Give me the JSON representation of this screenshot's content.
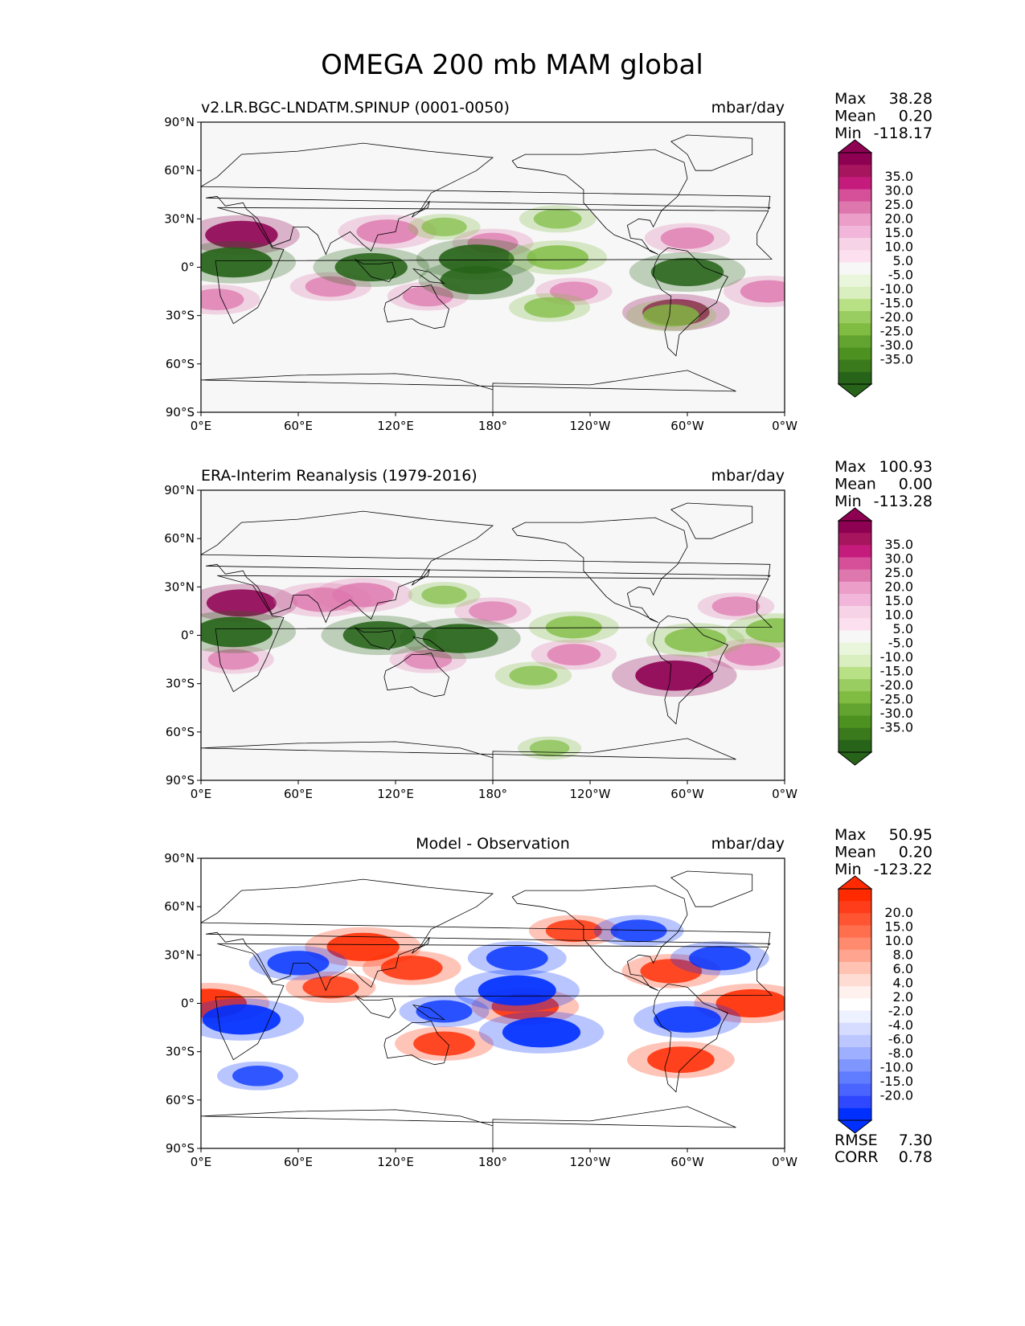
{
  "figure_title": "OMEGA 200 mb MAM global",
  "lon_ticks": [
    "0°E",
    "60°E",
    "120°E",
    "180°",
    "120°W",
    "60°W",
    "0°W"
  ],
  "lat_ticks": [
    "90°N",
    "60°N",
    "30°N",
    "0°",
    "30°S",
    "60°S",
    "90°S"
  ],
  "stat_labels": {
    "max": "Max",
    "mean": "Mean",
    "min": "Min",
    "rmse": "RMSE",
    "corr": "CORR"
  },
  "colors": {
    "pos_strong": "#8e0152",
    "pos_mid": "#de77ae",
    "pos_weak": "#fde0ef",
    "neg_strong": "#276419",
    "neg_mid": "#7fbc41",
    "neg_weak": "#e6f5d0",
    "diff_pos": "#ff2a00",
    "diff_neg": "#0030ff",
    "land_bg": "#f7f7f7"
  },
  "chart_data": [
    {
      "type": "heatmap",
      "title": "v2.LR.BGC-LNDATM.SPINUP (0001-0050)",
      "units": "mbar/day",
      "stats": {
        "max": "38.28",
        "mean": "0.20",
        "min": "-118.17"
      },
      "colorbar_labels": [
        "35.0",
        "30.0",
        "25.0",
        "20.0",
        "15.0",
        "10.0",
        "5.0",
        "-5.0",
        "-10.0",
        "-15.0",
        "-20.0",
        "-25.0",
        "-30.0",
        "-35.0"
      ],
      "colorbar_colors": [
        "#8e0152",
        "#a8155f",
        "#c51b7d",
        "#d64f99",
        "#de77ae",
        "#ea9ec8",
        "#f1b6da",
        "#f7d3e8",
        "#fde0ef",
        "#f7f7f7",
        "#eaf6dc",
        "#d9efc0",
        "#b8e186",
        "#9acd61",
        "#7fbc41",
        "#62a42f",
        "#4d9221",
        "#3a7a1d",
        "#276419"
      ],
      "xlim": [
        0,
        360
      ],
      "ylim": [
        -90,
        90
      ],
      "features": [
        {
          "lon": 25,
          "lat": 20,
          "v": 0.8
        },
        {
          "lon": 115,
          "lat": 22,
          "v": 0.6
        },
        {
          "lon": 180,
          "lat": 15,
          "v": 0.4
        },
        {
          "lon": 300,
          "lat": 18,
          "v": 0.45
        },
        {
          "lon": 10,
          "lat": -20,
          "v": 0.45
        },
        {
          "lon": 350,
          "lat": -15,
          "v": 0.5
        },
        {
          "lon": 80,
          "lat": -12,
          "v": 0.4
        },
        {
          "lon": 140,
          "lat": -18,
          "v": 0.4
        },
        {
          "lon": 230,
          "lat": -15,
          "v": 0.35
        },
        {
          "lon": 293,
          "lat": -28,
          "v": 0.7
        },
        {
          "lon": 20,
          "lat": 3,
          "v": -0.9
        },
        {
          "lon": 105,
          "lat": 0,
          "v": -0.8
        },
        {
          "lon": 170,
          "lat": 5,
          "v": -0.85
        },
        {
          "lon": 220,
          "lat": 6,
          "v": -0.6
        },
        {
          "lon": 170,
          "lat": -8,
          "v": -0.8
        },
        {
          "lon": 300,
          "lat": -3,
          "v": -0.8
        },
        {
          "lon": 150,
          "lat": 25,
          "v": -0.3
        },
        {
          "lon": 215,
          "lat": -25,
          "v": -0.4
        },
        {
          "lon": 290,
          "lat": -30,
          "v": -0.5
        },
        {
          "lon": 220,
          "lat": 30,
          "v": -0.35
        }
      ]
    },
    {
      "type": "heatmap",
      "title": "ERA-Interim Reanalysis (1979-2016)",
      "units": "mbar/day",
      "stats": {
        "max": "100.93",
        "mean": "0.00",
        "min": "-113.28"
      },
      "colorbar_labels": [
        "35.0",
        "30.0",
        "25.0",
        "20.0",
        "15.0",
        "10.0",
        "5.0",
        "-5.0",
        "-10.0",
        "-15.0",
        "-20.0",
        "-25.0",
        "-30.0",
        "-35.0"
      ],
      "colorbar_colors": [
        "#8e0152",
        "#a8155f",
        "#c51b7d",
        "#d64f99",
        "#de77ae",
        "#ea9ec8",
        "#f1b6da",
        "#f7d3e8",
        "#fde0ef",
        "#f7f7f7",
        "#eaf6dc",
        "#d9efc0",
        "#b8e186",
        "#9acd61",
        "#7fbc41",
        "#62a42f",
        "#4d9221",
        "#3a7a1d",
        "#276419"
      ],
      "xlim": [
        0,
        360
      ],
      "ylim": [
        -90,
        90
      ],
      "features": [
        {
          "lon": 25,
          "lat": 20,
          "v": 0.75
        },
        {
          "lon": 75,
          "lat": 22,
          "v": 0.6
        },
        {
          "lon": 100,
          "lat": 25,
          "v": 0.6
        },
        {
          "lon": 180,
          "lat": 15,
          "v": 0.35
        },
        {
          "lon": 330,
          "lat": 18,
          "v": 0.35
        },
        {
          "lon": 20,
          "lat": -15,
          "v": 0.4
        },
        {
          "lon": 340,
          "lat": -12,
          "v": 0.5
        },
        {
          "lon": 230,
          "lat": -12,
          "v": 0.45
        },
        {
          "lon": 140,
          "lat": -15,
          "v": 0.35
        },
        {
          "lon": 292,
          "lat": -25,
          "v": 0.9
        },
        {
          "lon": 20,
          "lat": 2,
          "v": -0.9
        },
        {
          "lon": 110,
          "lat": 0,
          "v": -0.8
        },
        {
          "lon": 160,
          "lat": -2,
          "v": -0.85
        },
        {
          "lon": 230,
          "lat": 5,
          "v": -0.5
        },
        {
          "lon": 305,
          "lat": -3,
          "v": -0.6
        },
        {
          "lon": 355,
          "lat": 3,
          "v": -0.6
        },
        {
          "lon": 150,
          "lat": 25,
          "v": -0.3
        },
        {
          "lon": 205,
          "lat": -25,
          "v": -0.35
        },
        {
          "lon": 215,
          "lat": -70,
          "v": -0.2
        }
      ]
    },
    {
      "type": "heatmap",
      "title": "Model - Observation",
      "units": "mbar/day",
      "stats": {
        "max": "50.95",
        "mean": "0.20",
        "min": "-123.22",
        "rmse": "7.30",
        "corr": "0.78"
      },
      "colorbar_labels": [
        "20.0",
        "15.0",
        "10.0",
        "8.0",
        "6.0",
        "4.0",
        "2.0",
        "-2.0",
        "-4.0",
        "-6.0",
        "-8.0",
        "-10.0",
        "-15.0",
        "-20.0"
      ],
      "colorbar_colors": [
        "#ff2a00",
        "#ff3d1a",
        "#ff5533",
        "#ff6e4d",
        "#ff8a6e",
        "#ffa58f",
        "#ffc2b3",
        "#ffdcd3",
        "#fff2ee",
        "#ffffff",
        "#eef1ff",
        "#d5dcff",
        "#bcc7ff",
        "#9eafff",
        "#8096ff",
        "#607cff",
        "#4a64ff",
        "#2f48ff",
        "#0030ff"
      ],
      "xlim": [
        0,
        360
      ],
      "ylim": [
        -90,
        90
      ],
      "features": [
        {
          "lon": 100,
          "lat": 35,
          "v": 0.8
        },
        {
          "lon": 130,
          "lat": 22,
          "v": 0.6
        },
        {
          "lon": 5,
          "lat": 0,
          "v": 0.85
        },
        {
          "lon": 340,
          "lat": 0,
          "v": 0.8
        },
        {
          "lon": 200,
          "lat": -2,
          "v": 0.7
        },
        {
          "lon": 150,
          "lat": -25,
          "v": 0.6
        },
        {
          "lon": 296,
          "lat": -35,
          "v": 0.7
        },
        {
          "lon": 290,
          "lat": 20,
          "v": 0.6
        },
        {
          "lon": 230,
          "lat": 45,
          "v": 0.5
        },
        {
          "lon": 80,
          "lat": 10,
          "v": 0.5
        },
        {
          "lon": 25,
          "lat": -10,
          "v": -0.9
        },
        {
          "lon": 60,
          "lat": 25,
          "v": -0.6
        },
        {
          "lon": 195,
          "lat": 8,
          "v": -0.9
        },
        {
          "lon": 210,
          "lat": -18,
          "v": -0.9
        },
        {
          "lon": 300,
          "lat": -10,
          "v": -0.7
        },
        {
          "lon": 320,
          "lat": 28,
          "v": -0.6
        },
        {
          "lon": 195,
          "lat": 28,
          "v": -0.6
        },
        {
          "lon": 150,
          "lat": -5,
          "v": -0.5
        },
        {
          "lon": 35,
          "lat": -45,
          "v": -0.4
        },
        {
          "lon": 270,
          "lat": 45,
          "v": -0.5
        }
      ]
    }
  ]
}
